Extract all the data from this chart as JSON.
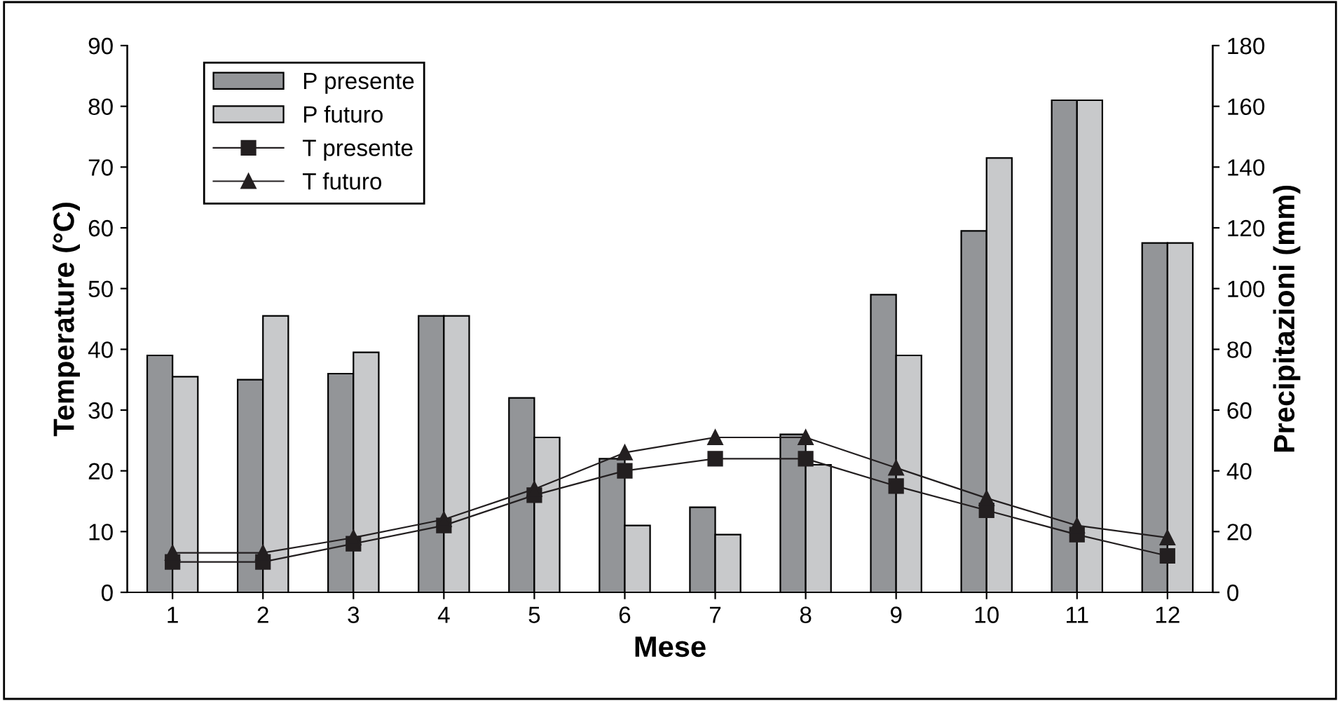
{
  "chart_data": {
    "type": "bar",
    "xlabel": "Mese",
    "ylabel": "Temperature (°C)",
    "y2label": "Precipitazioni (mm)",
    "categories": [
      "1",
      "2",
      "3",
      "4",
      "5",
      "6",
      "7",
      "8",
      "9",
      "10",
      "11",
      "12"
    ],
    "series": [
      {
        "name": "P presente",
        "axis": "y2",
        "color": "#939598",
        "values": [
          78,
          70,
          72,
          91,
          64,
          44,
          28,
          52,
          98,
          119,
          162,
          115
        ]
      },
      {
        "name": "P futuro",
        "axis": "y2",
        "color": "#c8c9cb",
        "values": [
          71,
          91,
          79,
          91,
          51,
          22,
          19,
          42,
          78,
          143,
          162,
          115
        ]
      },
      {
        "name": "T presente",
        "type": "line",
        "color": "#231f20",
        "marker": "square",
        "values": [
          5,
          5,
          8,
          11,
          16,
          20,
          22,
          22,
          17.5,
          13.5,
          9.5,
          6
        ]
      },
      {
        "name": "T futuro",
        "type": "line",
        "color": "#231f20",
        "marker": "triangle",
        "values": [
          6.5,
          6.5,
          9,
          12,
          17,
          23,
          25.5,
          25.5,
          20.5,
          15.5,
          11,
          9
        ]
      }
    ],
    "ylim": [
      0,
      90
    ],
    "yticks": [
      0,
      10,
      20,
      30,
      40,
      50,
      60,
      70,
      80,
      90
    ],
    "y2lim": [
      0,
      180
    ],
    "y2ticks": [
      0,
      20,
      40,
      60,
      80,
      100,
      120,
      140,
      160,
      180
    ],
    "grid": false,
    "legend": "top left"
  }
}
